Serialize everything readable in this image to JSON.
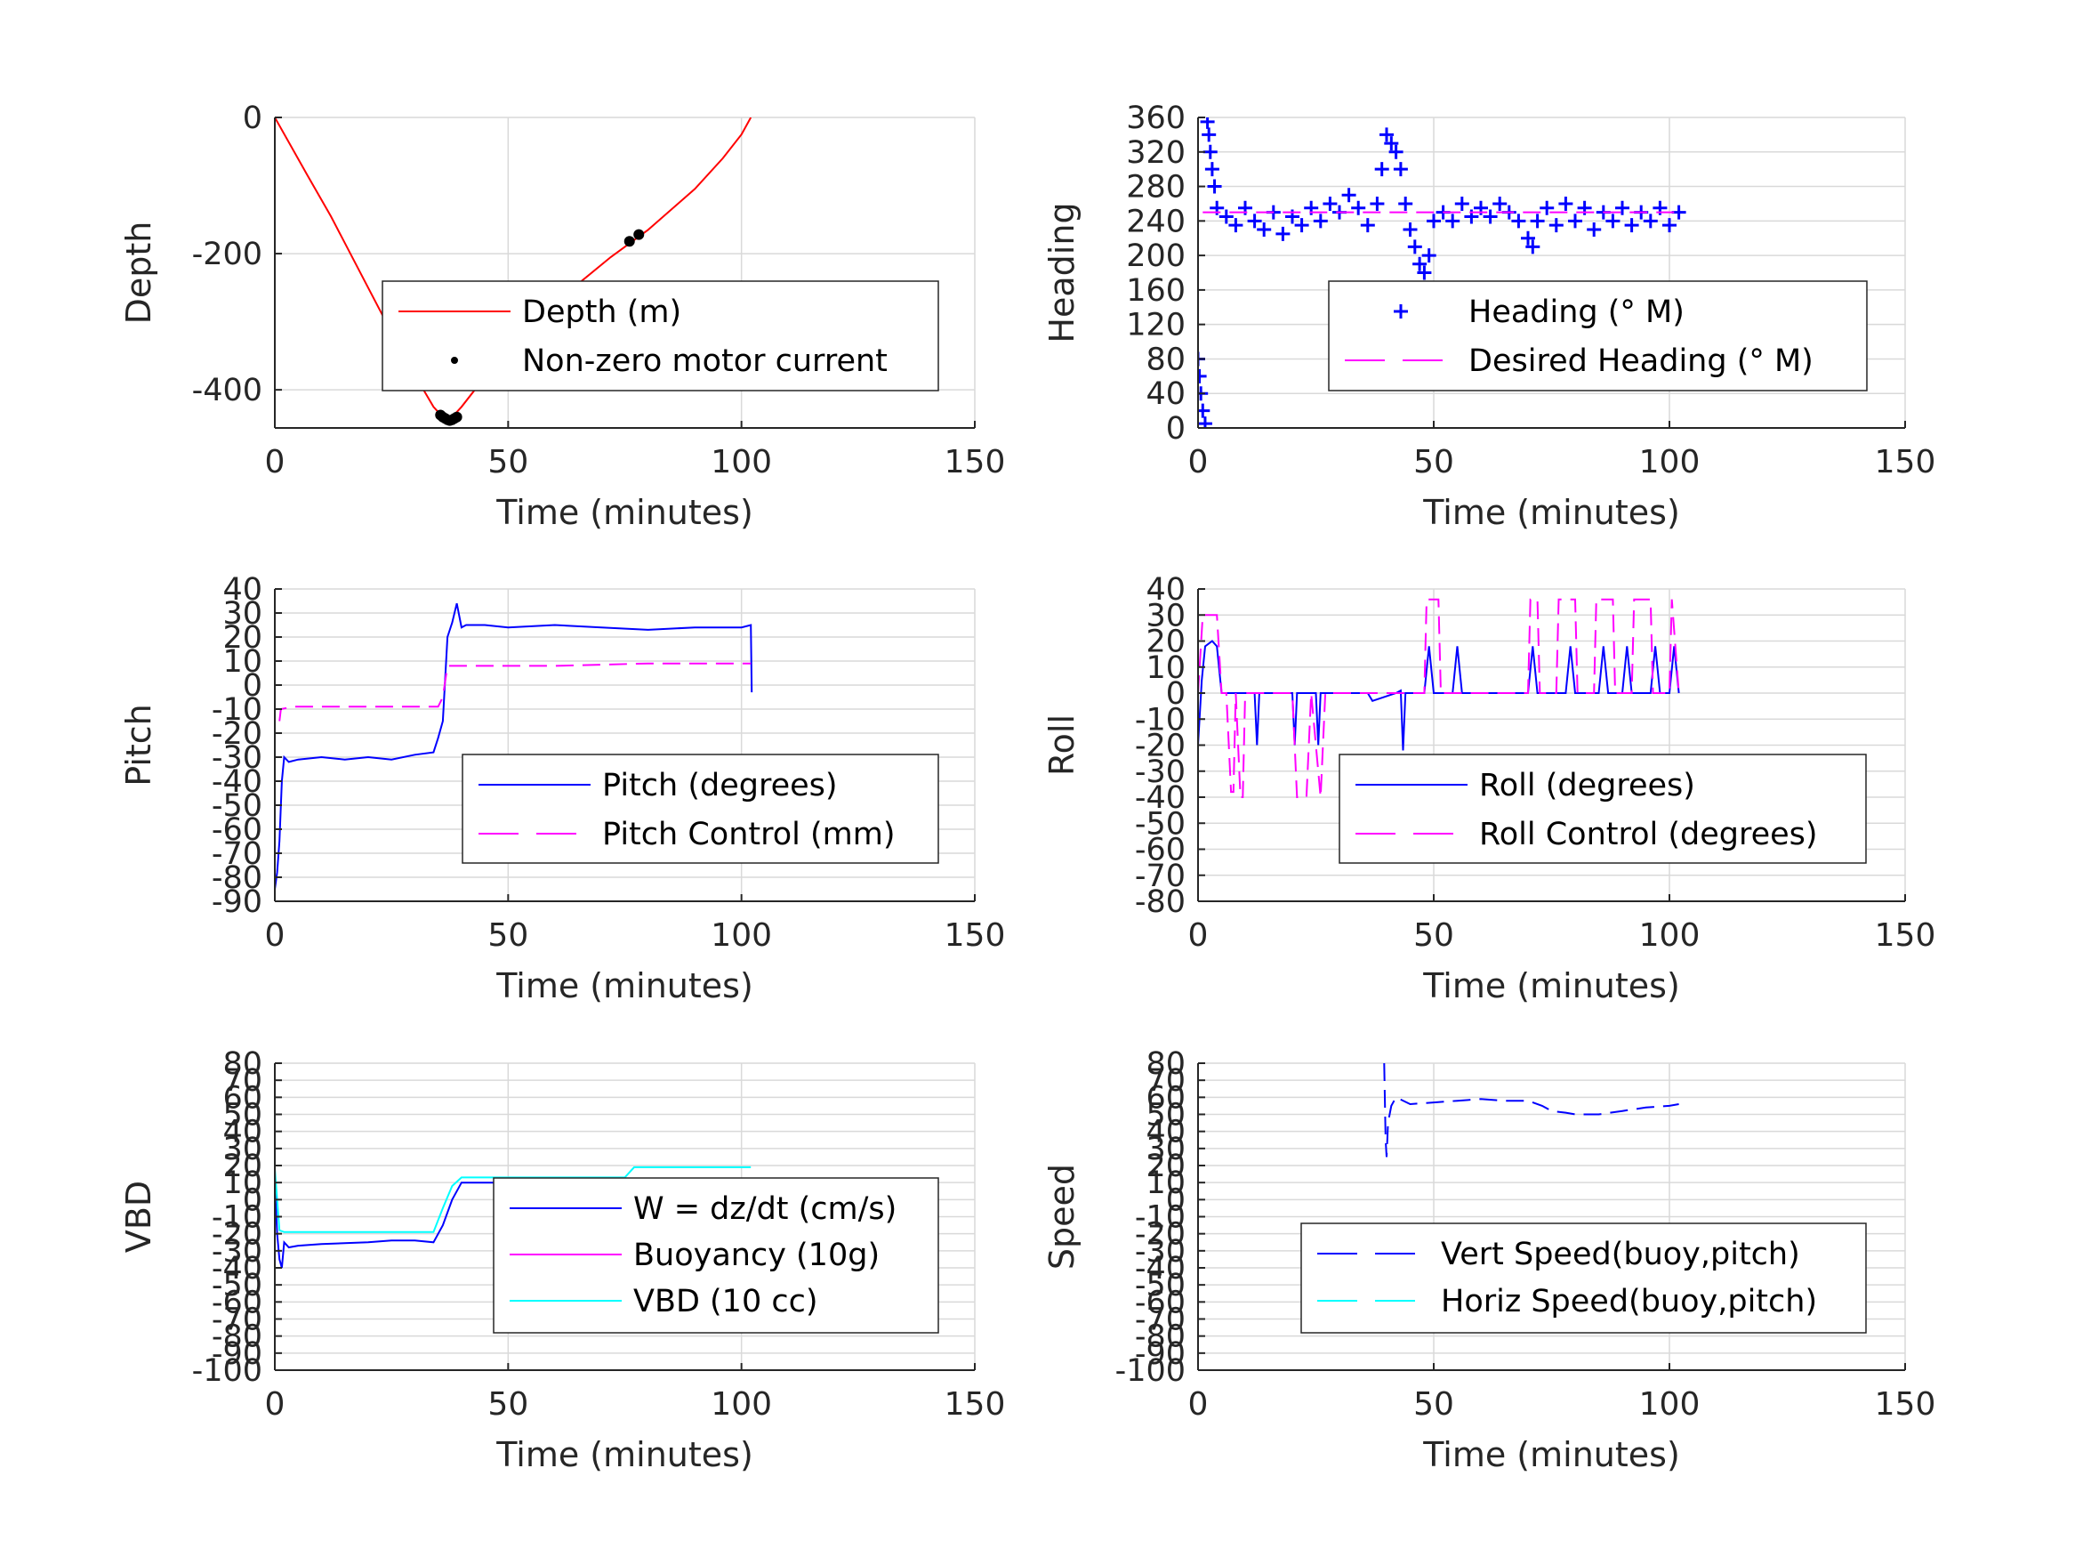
{
  "chart_data": [
    {
      "type": "line",
      "ylabel": "Depth",
      "xlabel": "Time (minutes)",
      "xlim": [
        0,
        150
      ],
      "ylim": [
        -456,
        0
      ],
      "xticks": [
        0,
        50,
        100,
        150
      ],
      "yticks": [
        0,
        -200,
        -400
      ],
      "ytick_labels": [
        "0",
        "-200",
        "-400"
      ],
      "grid": true,
      "legend_placement": "center-right",
      "series": [
        {
          "name": "Depth (m)",
          "style": "solid",
          "color": "#ff0000",
          "x": [
            0,
            7,
            12,
            20,
            28,
            34,
            36,
            37,
            38,
            40,
            48,
            56,
            64,
            72,
            80,
            90,
            96,
            100,
            102
          ],
          "y": [
            0,
            -85,
            -145,
            -250,
            -355,
            -425,
            -440,
            -443,
            -440,
            -425,
            -355,
            -295,
            -250,
            -205,
            -165,
            -105,
            -60,
            -25,
            0
          ]
        },
        {
          "name": "Non-zero motor current",
          "style": "dots",
          "color": "#000000",
          "x": [
            35.5,
            36,
            36.5,
            37,
            37.5,
            38,
            38.5,
            39,
            76,
            78
          ],
          "y": [
            -437,
            -440,
            -442,
            -444,
            -445,
            -444,
            -442,
            -440,
            -182,
            -172
          ]
        }
      ]
    },
    {
      "type": "scatter",
      "ylabel": "Heading",
      "xlabel": "Time (minutes)",
      "xlim": [
        0,
        150
      ],
      "ylim": [
        0,
        360
      ],
      "xticks": [
        0,
        50,
        100,
        150
      ],
      "yticks": [
        0,
        40,
        80,
        120,
        160,
        200,
        240,
        280,
        320,
        360
      ],
      "ytick_labels": [
        "0",
        "40",
        "80",
        "120",
        "160",
        "200",
        "240",
        "280",
        "320",
        "360"
      ],
      "grid": true,
      "legend_placement": "center-right",
      "series": [
        {
          "name": "Heading (° M)",
          "style": "plus",
          "color": "#0000ff",
          "x": [
            0,
            0.3,
            0.6,
            1,
            1.5,
            2,
            2.3,
            2.6,
            3,
            3.5,
            4,
            6,
            8,
            10,
            12,
            14,
            16,
            18,
            20,
            22,
            24,
            26,
            28,
            30,
            32,
            34,
            36,
            38,
            39,
            40,
            41,
            42,
            43,
            44,
            45,
            46,
            47,
            48,
            49,
            50,
            52,
            54,
            56,
            58,
            60,
            62,
            64,
            66,
            68,
            70,
            71,
            72,
            74,
            76,
            78,
            80,
            82,
            84,
            86,
            88,
            90,
            92,
            94,
            96,
            98,
            100,
            102
          ],
          "y": [
            80,
            60,
            40,
            20,
            5,
            355,
            340,
            320,
            300,
            280,
            255,
            245,
            235,
            255,
            240,
            230,
            250,
            225,
            245,
            235,
            255,
            240,
            260,
            250,
            270,
            255,
            235,
            260,
            300,
            340,
            330,
            320,
            300,
            260,
            230,
            210,
            190,
            180,
            200,
            240,
            250,
            240,
            260,
            245,
            255,
            245,
            260,
            250,
            240,
            220,
            210,
            240,
            255,
            235,
            260,
            240,
            255,
            230,
            250,
            240,
            255,
            235,
            250,
            240,
            255,
            235,
            250
          ]
        },
        {
          "name": "Desired Heading (° M)",
          "style": "dashed",
          "color": "#ff00ff",
          "x": [
            1,
            102
          ],
          "y": [
            250,
            250
          ]
        }
      ]
    },
    {
      "type": "line",
      "ylabel": "Pitch",
      "xlabel": "Time (minutes)",
      "xlim": [
        0,
        150
      ],
      "ylim": [
        -90,
        40
      ],
      "xticks": [
        0,
        50,
        100,
        150
      ],
      "yticks": [
        40,
        30,
        20,
        10,
        0,
        -10,
        -20,
        -30,
        -40,
        -50,
        -60,
        -70,
        -80,
        -90
      ],
      "ytick_labels": [
        "40",
        "30",
        "20",
        "10",
        "0",
        "-10",
        "-20",
        "-30",
        "-40",
        "-50",
        "-60",
        "-70",
        "-80",
        "-90"
      ],
      "grid": true,
      "legend_placement": "center-right",
      "series": [
        {
          "name": "Pitch (degrees)",
          "style": "solid",
          "color": "#0000ff",
          "x": [
            0,
            0.5,
            1,
            1.5,
            2,
            3,
            5,
            10,
            15,
            20,
            25,
            30,
            34,
            35,
            36,
            37,
            38,
            39,
            40,
            41,
            45,
            50,
            60,
            70,
            80,
            90,
            100,
            102,
            102.2
          ],
          "y": [
            -85,
            -78,
            -65,
            -40,
            -30,
            -32,
            -31,
            -30,
            -31,
            -30,
            -31,
            -29,
            -28,
            -22,
            -15,
            20,
            26,
            34,
            24,
            25,
            25,
            24,
            25,
            24,
            23,
            24,
            24,
            25,
            -3
          ]
        },
        {
          "name": "Pitch Control (mm)",
          "style": "dashed",
          "color": "#ff00ff",
          "x": [
            1,
            1.3,
            4,
            10,
            20,
            30,
            35,
            36,
            37,
            40,
            60,
            80,
            100,
            102
          ],
          "y": [
            -15,
            -10,
            -9,
            -9,
            -9,
            -9,
            -9,
            -5,
            8,
            8,
            8,
            9,
            9,
            9
          ]
        }
      ]
    },
    {
      "type": "line",
      "ylabel": "Roll",
      "xlabel": "Time (minutes)",
      "xlim": [
        0,
        150
      ],
      "ylim": [
        -80,
        40
      ],
      "xticks": [
        0,
        50,
        100,
        150
      ],
      "yticks": [
        40,
        30,
        20,
        10,
        0,
        -10,
        -20,
        -30,
        -40,
        -50,
        -60,
        -70,
        -80
      ],
      "ytick_labels": [
        "40",
        "30",
        "20",
        "10",
        "0",
        "-10",
        "-20",
        "-30",
        "-40",
        "-50",
        "-60",
        "-70",
        "-80"
      ],
      "grid": true,
      "legend_placement": "center-right",
      "series": [
        {
          "name": "Roll (degrees)",
          "style": "solid",
          "color": "#0000ff",
          "x": [
            0,
            0.8,
            1.5,
            3,
            4,
            5,
            6,
            12,
            12.5,
            13,
            20,
            20.5,
            21,
            25,
            25.5,
            26,
            36,
            37,
            42,
            43,
            43.5,
            44,
            48,
            49,
            50,
            54,
            55,
            56,
            70,
            71,
            72,
            78,
            79,
            80,
            85,
            86,
            87,
            90,
            91,
            92,
            96,
            97,
            98,
            100,
            101,
            102
          ],
          "y": [
            -20,
            5,
            18,
            20,
            18,
            0,
            0,
            0,
            -20,
            0,
            0,
            -20,
            0,
            0,
            -20,
            0,
            0,
            -3,
            0,
            1,
            -22,
            0,
            0,
            18,
            0,
            0,
            18,
            0,
            0,
            18,
            0,
            0,
            18,
            0,
            0,
            18,
            0,
            0,
            18,
            0,
            0,
            18,
            0,
            0,
            18,
            0
          ]
        },
        {
          "name": "Roll Control (degrees)",
          "style": "dashed",
          "color": "#ff00ff",
          "x": [
            0,
            1,
            1.5,
            3,
            4,
            5,
            6,
            7,
            7.5,
            8,
            9,
            9.5,
            10,
            20,
            21,
            23,
            24,
            26,
            27,
            45,
            48,
            48.5,
            51,
            51.5,
            70,
            70.5,
            72,
            72.5,
            76,
            76.5,
            80,
            80.5,
            84,
            84.5,
            88,
            88.5,
            92,
            92.5,
            96,
            96.5,
            100,
            100.5,
            102
          ],
          "y": [
            0,
            30,
            30,
            30,
            30,
            0,
            0,
            -38,
            -38,
            0,
            -40,
            -40,
            0,
            0,
            -40,
            -40,
            0,
            -40,
            0,
            0,
            0,
            36,
            36,
            0,
            0,
            36,
            36,
            0,
            0,
            36,
            36,
            0,
            0,
            36,
            36,
            0,
            0,
            36,
            36,
            0,
            0,
            36,
            0
          ]
        }
      ]
    },
    {
      "type": "line",
      "ylabel": "VBD",
      "xlabel": "Time (minutes)",
      "xlim": [
        0,
        150
      ],
      "ylim": [
        -100,
        80
      ],
      "xticks": [
        0,
        50,
        100,
        150
      ],
      "yticks": [
        80,
        70,
        60,
        50,
        40,
        30,
        20,
        10,
        0,
        -10,
        -20,
        -30,
        -40,
        -50,
        -60,
        -70,
        -80,
        -90,
        -100
      ],
      "ytick_labels": [
        "80",
        "70",
        "60",
        "50",
        "40",
        "30",
        "20",
        "10",
        "0",
        "-10",
        "-20",
        "-30",
        "-40",
        "-50",
        "-60",
        "-70",
        "-80",
        "-90",
        "-100"
      ],
      "grid": true,
      "legend_placement": "center-right",
      "series": [
        {
          "name": "W = dz/dt (cm/s)",
          "style": "solid",
          "color": "#0000ff",
          "x": [
            0,
            0.5,
            1,
            1.5,
            2,
            3,
            5,
            10,
            20,
            25,
            30,
            34,
            36,
            38,
            40,
            45,
            50,
            60,
            70,
            75,
            80,
            90,
            100,
            102,
            102.5
          ],
          "y": [
            10,
            -20,
            -35,
            -40,
            -25,
            -28,
            -27,
            -26,
            -25,
            -24,
            -24,
            -25,
            -15,
            0,
            10,
            10,
            10,
            10,
            10,
            9,
            8,
            8,
            8,
            9,
            1
          ]
        },
        {
          "name": "Buoyancy (10g)",
          "style": "solid",
          "color": "#ff00ff",
          "x": [],
          "y": []
        },
        {
          "name": "VBD (10 cc)",
          "style": "solid",
          "color": "#00ffff",
          "x": [
            0,
            1,
            2,
            5,
            10,
            20,
            30,
            34,
            36,
            38,
            40,
            50,
            60,
            70,
            75,
            77,
            80,
            90,
            100,
            102
          ],
          "y": [
            18,
            -18,
            -19,
            -19,
            -19,
            -19,
            -19,
            -19,
            -5,
            8,
            13,
            13,
            13,
            13,
            13,
            19,
            19,
            19,
            19,
            19
          ]
        }
      ]
    },
    {
      "type": "line",
      "ylabel": "Speed",
      "xlabel": "Time (minutes)",
      "xlim": [
        0,
        150
      ],
      "ylim": [
        -100,
        80
      ],
      "xticks": [
        0,
        50,
        100,
        150
      ],
      "yticks": [
        80,
        70,
        60,
        50,
        40,
        30,
        20,
        10,
        0,
        -10,
        -20,
        -30,
        -40,
        -50,
        -60,
        -70,
        -80,
        -90,
        -100
      ],
      "ytick_labels": [
        "80",
        "70",
        "60",
        "50",
        "40",
        "30",
        "20",
        "10",
        "0",
        "-10",
        "-20",
        "-30",
        "-40",
        "-50",
        "-60",
        "-70",
        "-80",
        "-90",
        "-100"
      ],
      "grid": true,
      "legend_placement": "center-right",
      "series": [
        {
          "name": "Vert Speed(buoy,pitch)",
          "style": "dashed",
          "color": "#0000ff",
          "x": [
            39.5,
            39.8,
            40,
            40.3,
            41,
            42,
            45,
            50,
            55,
            60,
            65,
            70,
            73,
            75,
            78,
            80,
            85,
            90,
            95,
            100,
            102
          ],
          "y": [
            80,
            35,
            25,
            45,
            55,
            60,
            56,
            57,
            58,
            59,
            58,
            58,
            55,
            52,
            51,
            50,
            50,
            52,
            54,
            55,
            56
          ]
        },
        {
          "name": "Horiz Speed(buoy,pitch)",
          "style": "dashed",
          "color": "#00ffff",
          "x": [],
          "y": []
        }
      ]
    }
  ]
}
